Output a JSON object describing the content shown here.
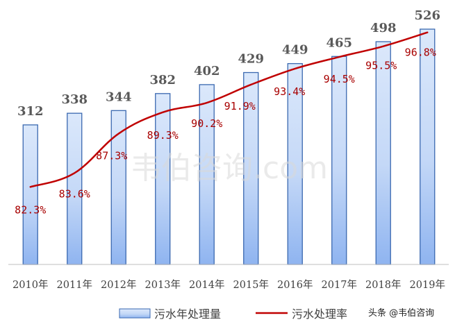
{
  "chart_data": {
    "type": "bar",
    "categories": [
      "2010年",
      "2011年",
      "2012年",
      "2013年",
      "2014年",
      "2015年",
      "2016年",
      "2017年",
      "2018年",
      "2019年"
    ],
    "series": [
      {
        "name": "污水年处理量",
        "type": "bar",
        "values": [
          312,
          338,
          344,
          382,
          402,
          429,
          449,
          465,
          498,
          526
        ],
        "labels": [
          "312",
          "338",
          "344",
          "382",
          "402",
          "429",
          "449",
          "465",
          "498",
          "526"
        ]
      },
      {
        "name": "污水处理率",
        "type": "line",
        "values": [
          82.3,
          83.6,
          87.3,
          89.3,
          90.2,
          91.9,
          93.4,
          94.5,
          95.5,
          96.8
        ],
        "labels": [
          "82.3%",
          "83.6%",
          "87.3%",
          "89.3%",
          "90.2%",
          "91.9%",
          "93.4%",
          "94.5%",
          "95.5%",
          "96.8%"
        ]
      }
    ],
    "legend_position": "bottom",
    "grid": false,
    "colors": {
      "bar_fill_top": "#dbe8fb",
      "bar_fill_bottom": "#8fb4f0",
      "bar_stroke": "#3a68b0",
      "line": "#c00000"
    }
  },
  "watermark": "韦伯咨询.com",
  "credit": "头条 @韦伯咨询"
}
